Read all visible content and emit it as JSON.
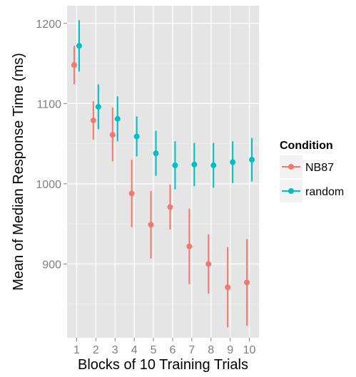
{
  "chart_data": {
    "type": "scatter",
    "title": "",
    "xlabel": "Blocks of 10 Training Trials",
    "ylabel": "Mean of Median Response Time (ms)",
    "x": [
      1,
      2,
      3,
      4,
      5,
      6,
      7,
      8,
      9,
      10
    ],
    "x_tick_labels": [
      "1",
      "2",
      "3",
      "4",
      "5",
      "6",
      "7",
      "8",
      "9",
      "10"
    ],
    "y_ticks": [
      900,
      1000,
      1100,
      1200
    ],
    "y_tick_labels": [
      "900",
      "1000",
      "1100",
      "1200"
    ],
    "xlim": [
      0.5,
      10.5
    ],
    "ylim": [
      808,
      1222
    ],
    "grid": true,
    "error_bars": true,
    "legend": {
      "title": "Condition",
      "position": "right"
    },
    "series": [
      {
        "name": "NB87",
        "color": "#f8766d",
        "values": [
          1148,
          1079,
          1061,
          988,
          949,
          971,
          922,
          900,
          871,
          877
        ],
        "lower": [
          1124,
          1055,
          1028,
          946,
          907,
          943,
          875,
          863,
          821,
          823
        ],
        "upper": [
          1172,
          1103,
          1095,
          1030,
          991,
          999,
          969,
          937,
          921,
          931
        ]
      },
      {
        "name": "random",
        "color": "#00bfc4",
        "values": [
          1172,
          1096,
          1081,
          1059,
          1038,
          1023,
          1024,
          1023,
          1027,
          1030
        ],
        "lower": [
          1140,
          1068,
          1053,
          1034,
          1010,
          993,
          997,
          995,
          1001,
          1003
        ],
        "upper": [
          1204,
          1124,
          1109,
          1084,
          1066,
          1053,
          1051,
          1051,
          1053,
          1057
        ]
      }
    ]
  }
}
